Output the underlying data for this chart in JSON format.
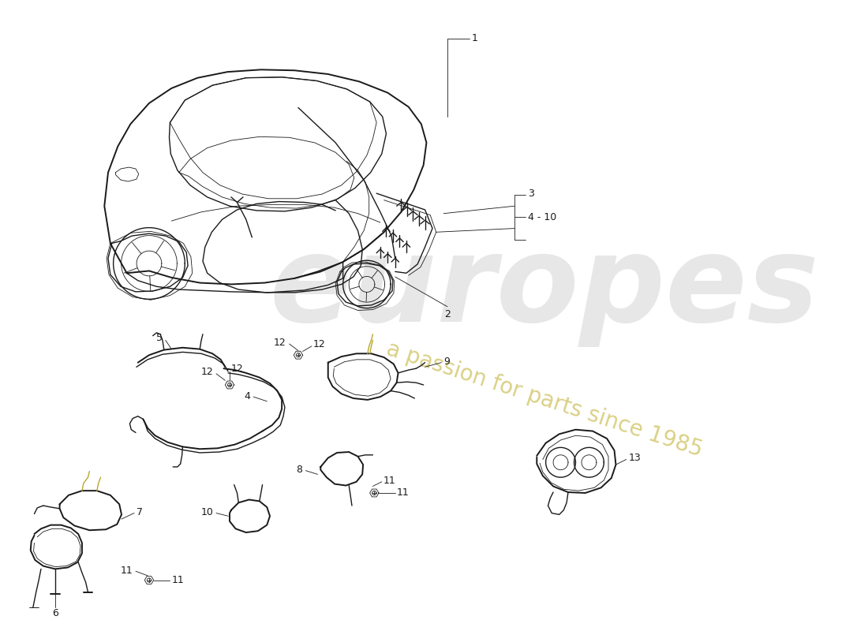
{
  "bg_color": "#ffffff",
  "line_color": "#1a1a1a",
  "watermark_europes_color": "#d8d8d8",
  "watermark_tagline_color": "#d4c870",
  "watermark_tagline_rotation": -18,
  "fig_width": 11.0,
  "fig_height": 8.0,
  "dpi": 100
}
